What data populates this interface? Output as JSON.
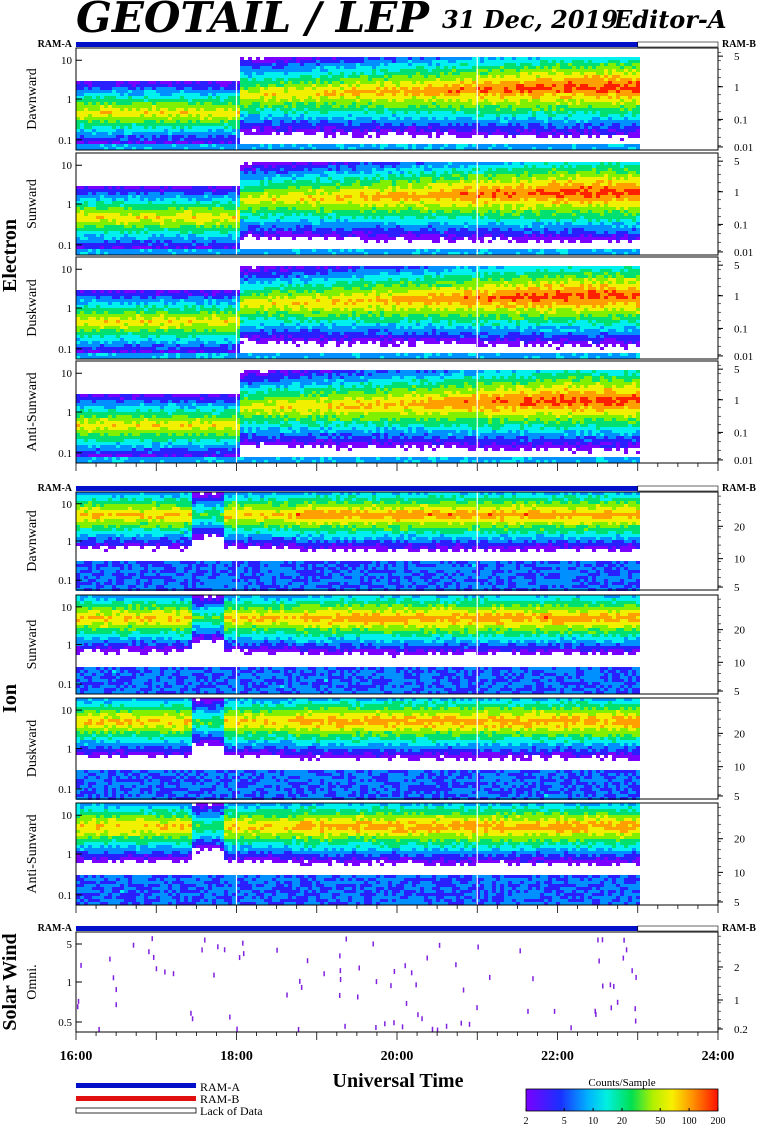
{
  "header": {
    "title": "GEOTAIL / LEP",
    "date": "31 Dec, 2019",
    "editor": "Editor-A"
  },
  "colors": {
    "ram_a": "#0010c8",
    "ram_b": "#e01010",
    "lack": "#ffffff",
    "spectrum": [
      "#7a00ff",
      "#2a20ff",
      "#0090ff",
      "#00f0f0",
      "#00e070",
      "#80f000",
      "#f0f000",
      "#ffa000",
      "#ff2000"
    ]
  },
  "ram_labels": {
    "a": "RAM-A",
    "b": "RAM-B"
  },
  "groups": [
    {
      "name": "Electron"
    },
    {
      "name": "Ion"
    },
    {
      "name": "Solar Wind"
    }
  ],
  "panels": [
    {
      "group": 0,
      "label": "Dawnward",
      "left_ticks": [
        "10",
        "1",
        "0.1"
      ],
      "right_ticks": [
        "5",
        "1",
        "0.1",
        "0.01"
      ],
      "ram_bar": true
    },
    {
      "group": 0,
      "label": "Sunward",
      "left_ticks": [
        "10",
        "1",
        "0.1"
      ],
      "right_ticks": [
        "5",
        "1",
        "0.1",
        "0.01"
      ],
      "ram_bar": false
    },
    {
      "group": 0,
      "label": "Duskward",
      "left_ticks": [
        "10",
        "1",
        "0.1"
      ],
      "right_ticks": [
        "5",
        "1",
        "0.1",
        "0.01"
      ],
      "ram_bar": false
    },
    {
      "group": 0,
      "label": "Anti-Sunward",
      "left_ticks": [
        "10",
        "1",
        "0.1"
      ],
      "right_ticks": [
        "5",
        "1",
        "0.1",
        "0.01"
      ],
      "ram_bar": false
    },
    {
      "group": 1,
      "label": "Dawnward",
      "left_ticks": [
        "10",
        "1",
        "0.1"
      ],
      "right_ticks": [
        "20",
        "10",
        "5"
      ],
      "ram_bar": true
    },
    {
      "group": 1,
      "label": "Sunward",
      "left_ticks": [
        "10",
        "1",
        "0.1"
      ],
      "right_ticks": [
        "20",
        "10",
        "5"
      ],
      "ram_bar": false
    },
    {
      "group": 1,
      "label": "Duskward",
      "left_ticks": [
        "10",
        "1",
        "0.1"
      ],
      "right_ticks": [
        "20",
        "10",
        "5"
      ],
      "ram_bar": false
    },
    {
      "group": 1,
      "label": "Anti-Sunward",
      "left_ticks": [
        "10",
        "1",
        "0.1"
      ],
      "right_ticks": [
        "20",
        "10",
        "5"
      ],
      "ram_bar": false
    },
    {
      "group": 2,
      "label": "Omni.",
      "left_ticks": [
        "5",
        "1",
        "0.5"
      ],
      "right_ticks": [
        "2",
        "1",
        "0.2"
      ],
      "ram_bar": true
    }
  ],
  "chart_data": {
    "type": "heatmap",
    "xlabel": "Universal Time",
    "x_ticks": [
      "16:00",
      "18:00",
      "20:00",
      "22:00",
      "24:00"
    ],
    "x_range_hours": [
      16,
      24
    ],
    "data_coverage_hours": [
      16,
      23
    ],
    "ram_a_coverage_hours": [
      16,
      23
    ],
    "lack_of_data_hours": [
      23,
      24
    ],
    "data_gap_hours": [
      18.0,
      21.0
    ],
    "electron_enhancement_start_hour": 18.0,
    "colorbar": {
      "label": "Counts/Sample",
      "ticks": [
        "2",
        "5",
        "10",
        "20",
        "50",
        "100",
        "200"
      ],
      "range": [
        2,
        200
      ],
      "scale": "log"
    }
  },
  "legend": {
    "ram_a": "RAM-A",
    "ram_b": "RAM-B",
    "lack": "Lack of Data"
  }
}
